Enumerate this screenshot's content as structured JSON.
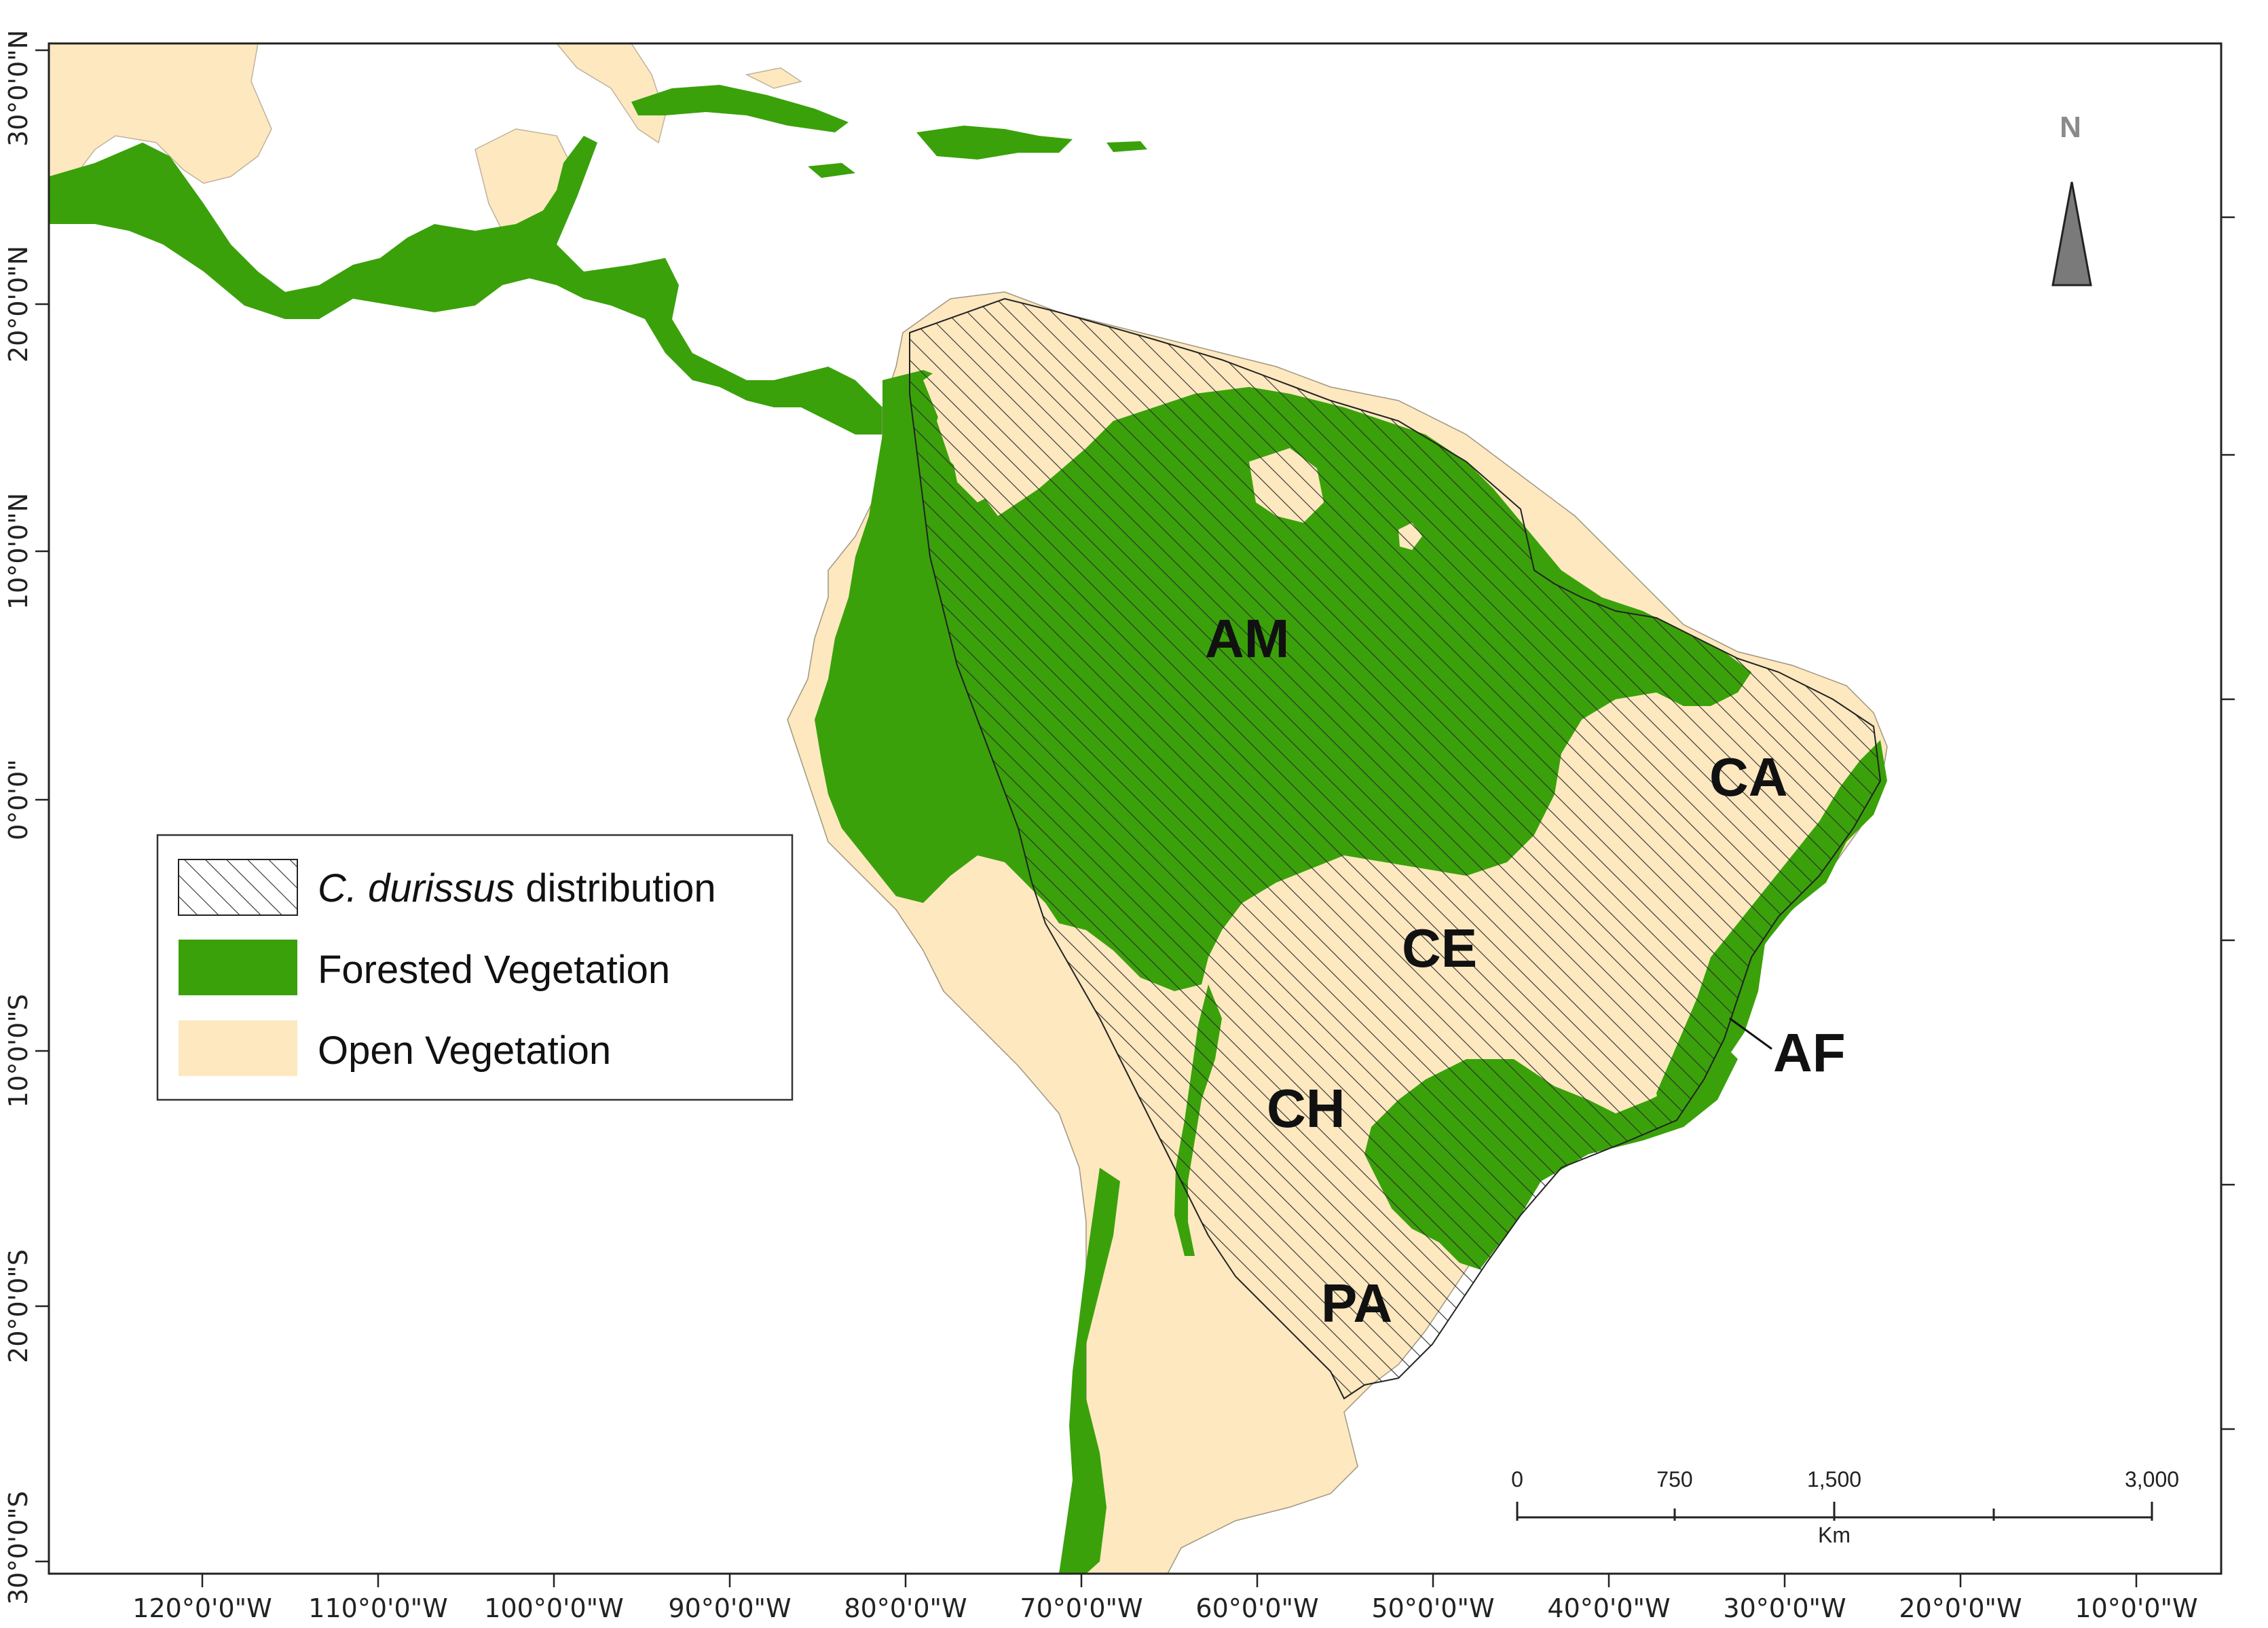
{
  "map": {
    "longitude_labels": [
      "120°0'0\"W",
      "110°0'0\"W",
      "100°0'0\"W",
      "90°0'0\"W",
      "80°0'0\"W",
      "70°0'0\"W",
      "60°0'0\"W",
      "50°0'0\"W",
      "40°0'0\"W",
      "30°0'0\"W",
      "20°0'0\"W",
      "10°0'0\"W"
    ],
    "latitude_labels": [
      "30°0'0\"N",
      "20°0'0\"N",
      "10°0'0\"N",
      "0°0'0\"",
      "10°0'0\"S",
      "20°0'0\"S",
      "30°0'0\"S"
    ],
    "regions": {
      "am": "AM",
      "ca": "CA",
      "ce": "CE",
      "ch": "CH",
      "pa": "PA",
      "af": "AF"
    },
    "north_arrow": {
      "label": "N",
      "icon": "north-arrow-icon"
    },
    "scale_bar": {
      "labels": [
        "0",
        "750",
        "1,500",
        "3,000"
      ],
      "unit": "Km"
    },
    "colors": {
      "forested": "#3aa10a",
      "open": "#fde8c0",
      "ocean": "#ffffff",
      "hatch": "#2b2b2b"
    }
  },
  "legend": {
    "items": [
      {
        "italic": "C. durissus",
        "rest": " distribution",
        "swatch": "hatched"
      },
      {
        "label": "Forested Vegetation",
        "swatch": "forested"
      },
      {
        "label": "Open Vegetation",
        "swatch": "open"
      }
    ]
  }
}
